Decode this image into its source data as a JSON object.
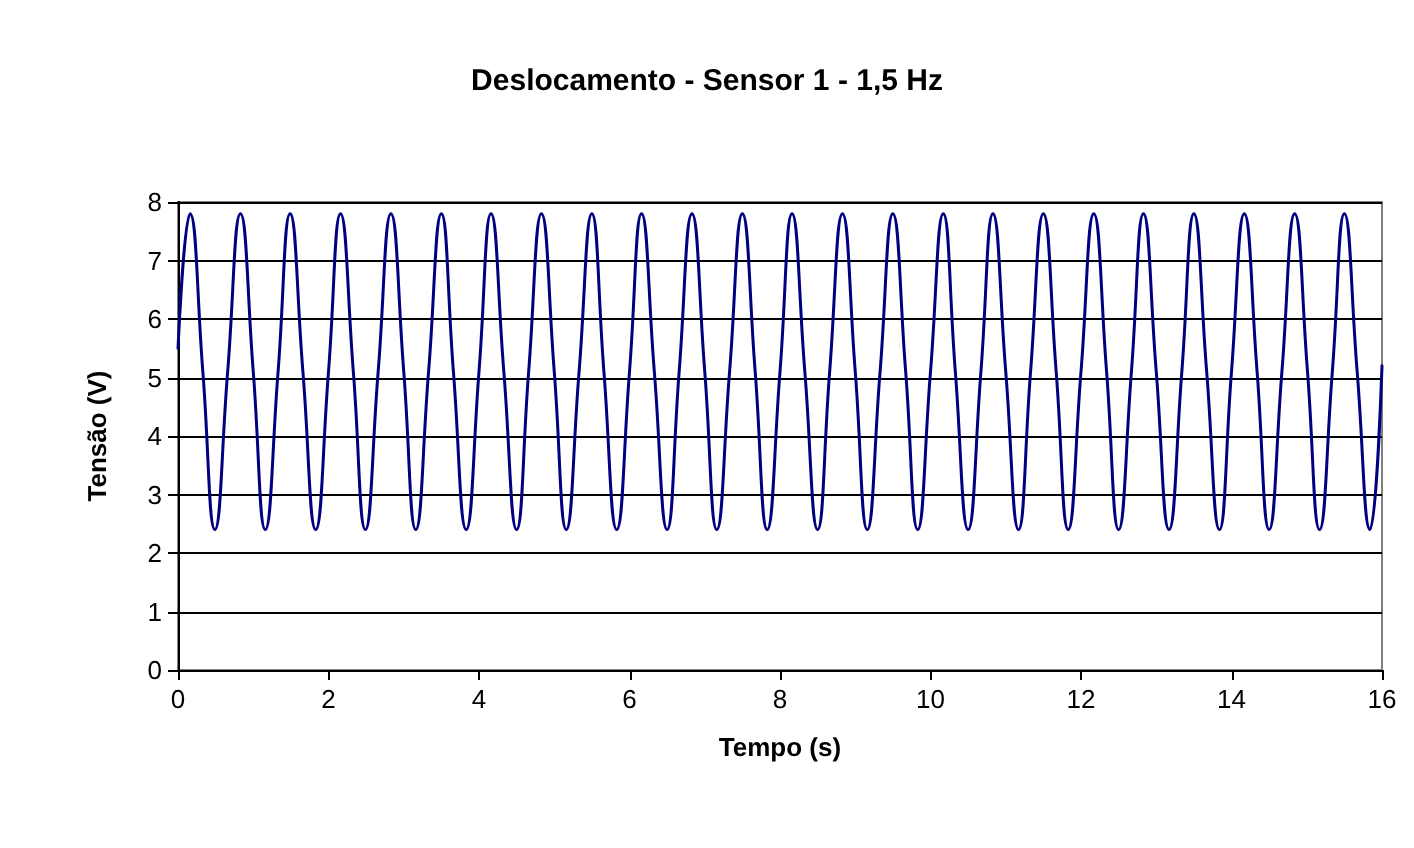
{
  "chart_data": {
    "type": "line",
    "title": "Deslocamento - Sensor 1 - 1,5 Hz",
    "xlabel": "Tempo (s)",
    "ylabel": "Tensão (V)",
    "xlim": [
      0,
      16
    ],
    "xticks": [
      0,
      2,
      4,
      6,
      8,
      10,
      12,
      14,
      16
    ],
    "ylim": [
      0,
      8
    ],
    "yticks": [
      0,
      1,
      2,
      3,
      4,
      5,
      6,
      7,
      8
    ],
    "grid": "y",
    "marker": "none",
    "line_style": "solid",
    "x": [
      0,
      0.16,
      0.33,
      0.49,
      0.66,
      0.83,
      1.0,
      1.16,
      1.33,
      1.49,
      1.66,
      1.83,
      2.0,
      2.16,
      2.33,
      2.49,
      2.66,
      2.83,
      3.0,
      3.16,
      3.33,
      3.5,
      3.66,
      3.83,
      4.0,
      4.16,
      4.33,
      4.5,
      4.66,
      4.83,
      5.0,
      5.16,
      5.33,
      5.5,
      5.66,
      5.83,
      6.0,
      6.16,
      6.33,
      6.5,
      6.66,
      6.83,
      7.0,
      7.16,
      7.33,
      7.5,
      7.67,
      7.83,
      8.0,
      8.16,
      8.33,
      8.5,
      8.66,
      8.83,
      9.0,
      9.16,
      9.33,
      9.5,
      9.67,
      9.83,
      10.0,
      10.17,
      10.33,
      10.5,
      10.67,
      10.83,
      11.0,
      11.17,
      11.33,
      11.5,
      11.67,
      11.83,
      12.0,
      12.17,
      12.34,
      12.5,
      12.67,
      12.83,
      13.0,
      13.17,
      13.34,
      13.5,
      13.67,
      13.84,
      14.0,
      14.17,
      14.34,
      14.5,
      14.67,
      14.84,
      15.01,
      15.17,
      15.34,
      15.5,
      15.67,
      15.84,
      16.0
    ],
    "series": [
      {
        "color": "#000080",
        "values": [
          5.5,
          7.8,
          5.1,
          2.4,
          5.1,
          7.8,
          5.1,
          2.4,
          5.1,
          7.8,
          5.1,
          2.4,
          5.1,
          7.8,
          5.1,
          2.4,
          5.1,
          7.8,
          5.1,
          2.4,
          5.1,
          7.8,
          5.1,
          2.4,
          5.1,
          7.8,
          5.1,
          2.4,
          5.1,
          7.8,
          5.1,
          2.4,
          5.1,
          7.8,
          5.1,
          2.4,
          5.1,
          7.8,
          5.1,
          2.4,
          5.1,
          7.8,
          5.1,
          2.4,
          5.1,
          7.8,
          5.1,
          2.4,
          5.1,
          7.8,
          5.1,
          2.4,
          5.1,
          7.8,
          5.1,
          2.4,
          5.1,
          7.8,
          5.1,
          2.4,
          5.1,
          7.8,
          5.1,
          2.4,
          5.1,
          7.8,
          5.1,
          2.4,
          5.1,
          7.8,
          5.1,
          2.4,
          5.1,
          7.8,
          5.1,
          2.4,
          5.1,
          7.8,
          5.1,
          2.4,
          5.1,
          7.8,
          5.1,
          2.4,
          5.1,
          7.8,
          5.1,
          2.4,
          5.1,
          7.8,
          5.1,
          2.4,
          5.1,
          7.8,
          5.1,
          2.4,
          5.2
        ]
      }
    ]
  }
}
